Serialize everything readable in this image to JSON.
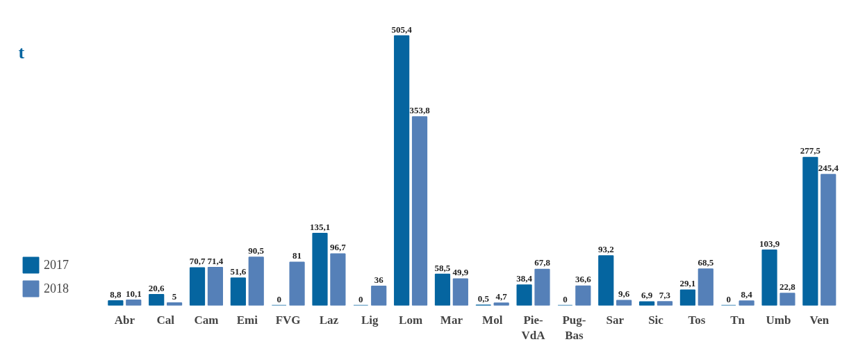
{
  "chart_data": {
    "type": "bar",
    "ylabel": "t",
    "legend": "bottom left",
    "grid": false,
    "categories": [
      "Abr",
      "Cal",
      "Cam",
      "Emi",
      "FVG",
      "Laz",
      "Lig",
      "Lom",
      "Mar",
      "Mol",
      "Pie-\nVdA",
      "Pug-\nBas",
      "Sar",
      "Sic",
      "Tos",
      "Tn",
      "Umb",
      "Ven"
    ],
    "series": [
      {
        "name": "2017",
        "color": "#0565a0",
        "values": [
          8.8,
          20.6,
          70.7,
          51.6,
          0,
          135.1,
          0,
          505.4,
          58.5,
          0.5,
          38.4,
          0,
          93.2,
          6.9,
          29.1,
          0,
          103.9,
          277.5
        ],
        "value_labels": [
          "8,8",
          "20,6",
          "70,7",
          "51,6",
          "0",
          "135,1",
          "0",
          "505,4",
          "58,5",
          "0,5",
          "38,4",
          "0",
          "93,2",
          "6,9",
          "29,1",
          "0",
          "103,9",
          "277,5"
        ]
      },
      {
        "name": "2018",
        "color": "#5580b8",
        "values": [
          10.1,
          5,
          71.4,
          90.5,
          81,
          96.7,
          36,
          353.8,
          49.9,
          4.7,
          67.8,
          36.6,
          9.6,
          7.3,
          68.5,
          8.4,
          22.8,
          245.4
        ],
        "value_labels": [
          "10,1",
          "5",
          "71,4",
          "90,5",
          "81",
          "96,7",
          "36",
          "353,8",
          "49,9",
          "4,7",
          "67,8",
          "36,6",
          "9,6",
          "7,3",
          "68,5",
          "8,4",
          "22,8",
          "245,4"
        ]
      }
    ]
  }
}
